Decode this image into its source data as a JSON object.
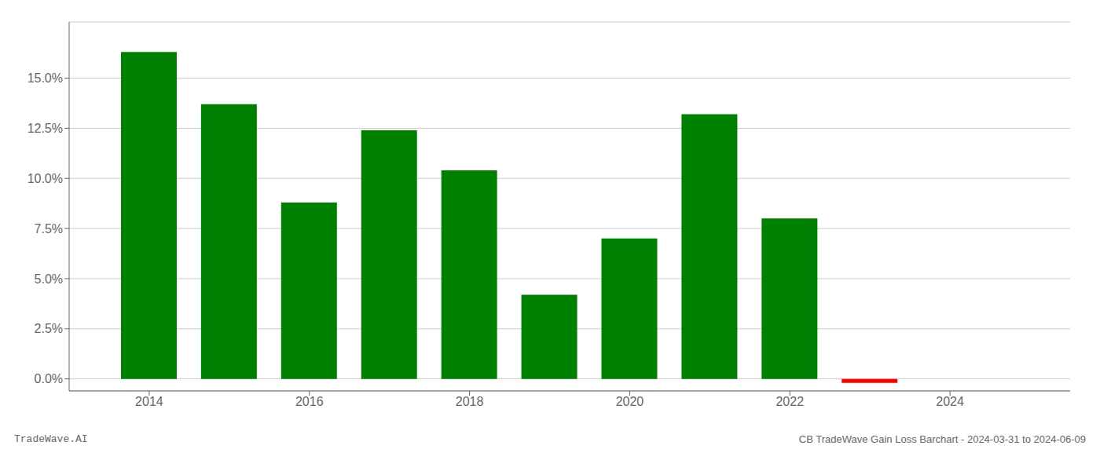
{
  "chart_data": {
    "type": "bar",
    "x": [
      2014,
      2015,
      2016,
      2017,
      2018,
      2019,
      2020,
      2021,
      2022,
      2023
    ],
    "values": [
      0.163,
      0.137,
      0.088,
      0.124,
      0.104,
      0.042,
      0.07,
      0.132,
      0.08,
      -0.002
    ],
    "colors": [
      "#008000",
      "#008000",
      "#008000",
      "#008000",
      "#008000",
      "#008000",
      "#008000",
      "#008000",
      "#008000",
      "#ff0000"
    ],
    "xlim": [
      2013.0,
      2025.5
    ],
    "ylim": [
      -0.006,
      0.178
    ],
    "xticks": [
      2014,
      2016,
      2018,
      2020,
      2022,
      2024
    ],
    "yticks": [
      {
        "value": 0.0,
        "label": "0.0%"
      },
      {
        "value": 0.025,
        "label": "2.5%"
      },
      {
        "value": 0.05,
        "label": "5.0%"
      },
      {
        "value": 0.075,
        "label": "7.5%"
      },
      {
        "value": 0.1,
        "label": "10.0%"
      },
      {
        "value": 0.125,
        "label": "12.5%"
      },
      {
        "value": 0.15,
        "label": "15.0%"
      }
    ],
    "grid": "y",
    "annotations": [
      "TradeWave.AI",
      "CB TradeWave Gain Loss Barchart - 2024-03-31 to 2024-06-09"
    ]
  }
}
